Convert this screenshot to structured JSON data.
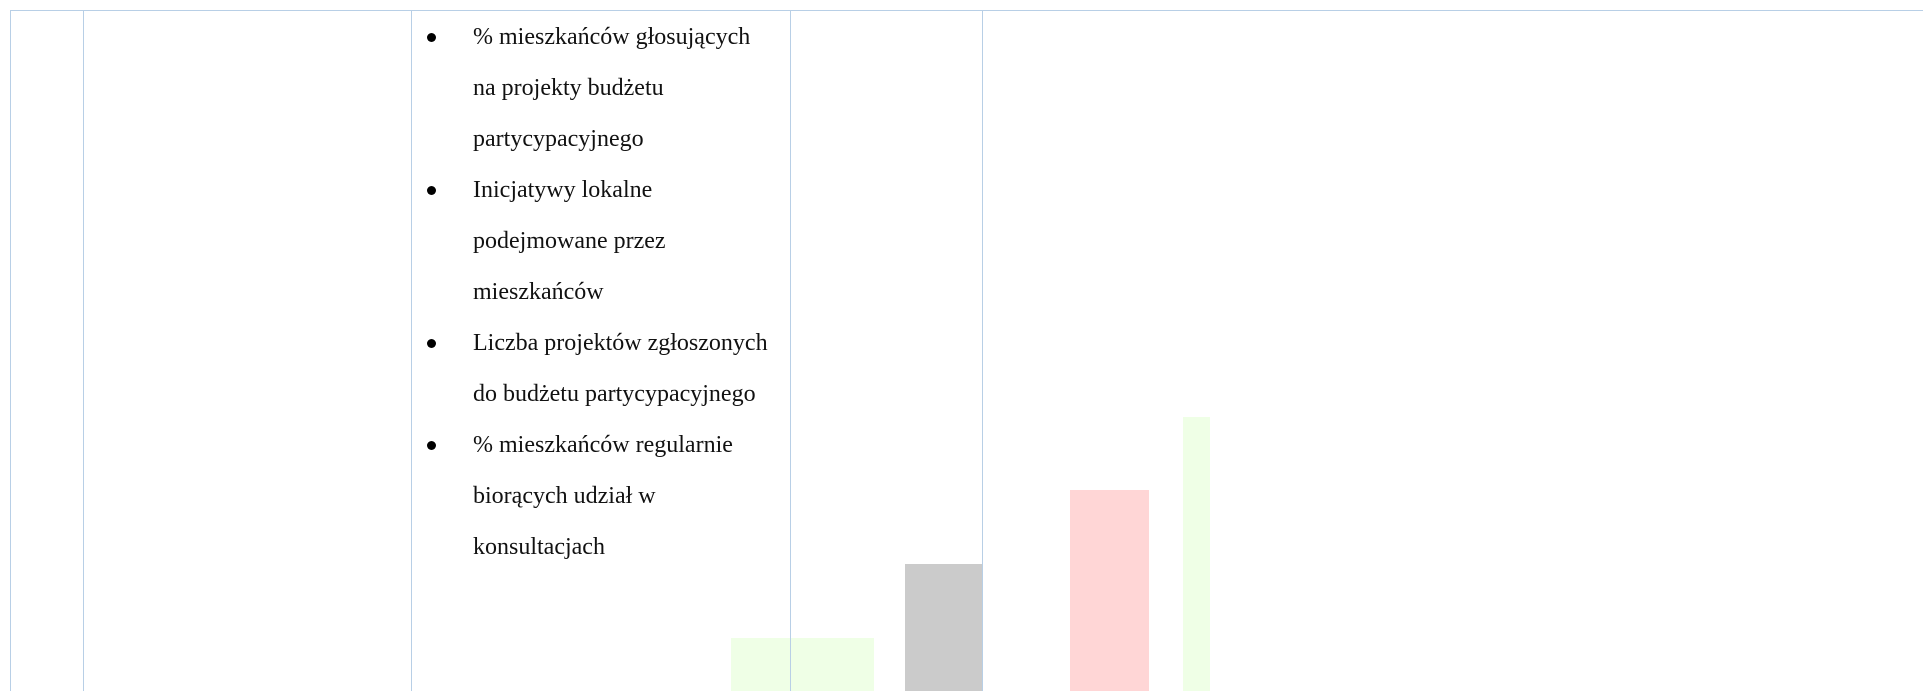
{
  "list": {
    "items": [
      "% mieszkańców głosujących na projekty budżetu partycypacyjnego",
      "Inicjatywy lokalne podejmowane przez mieszkańców",
      "Liczba projektów zgłoszonych do budżetu partycypacyjnego",
      "% mieszkańców regularnie biorących udział w konsultacjach"
    ]
  }
}
